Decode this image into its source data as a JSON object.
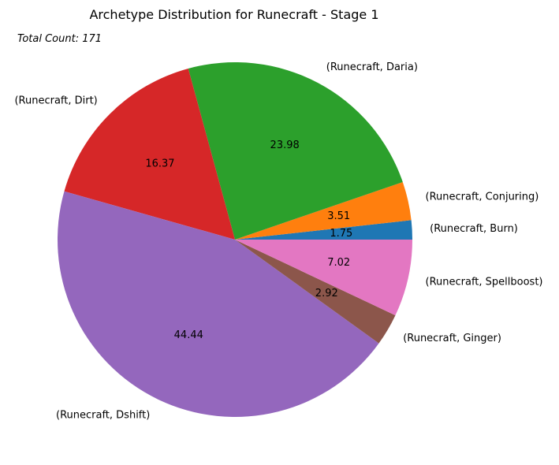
{
  "chart_data": {
    "type": "pie",
    "title": "Archetype Distribution for Runecraft - Stage 1",
    "annotation": "Total Count: 171",
    "slices": [
      {
        "label": "(Runecraft, Burn)",
        "value": 1.75,
        "pct_label": "1.75",
        "color": "#1f77b4"
      },
      {
        "label": "(Runecraft, Conjuring)",
        "value": 3.51,
        "pct_label": "3.51",
        "color": "#ff7f0e"
      },
      {
        "label": "(Runecraft, Daria)",
        "value": 23.98,
        "pct_label": "23.98",
        "color": "#2ca02c"
      },
      {
        "label": "(Runecraft, Dirt)",
        "value": 16.37,
        "pct_label": "16.37",
        "color": "#d62728"
      },
      {
        "label": "(Runecraft, Dshift)",
        "value": 44.44,
        "pct_label": "44.44",
        "color": "#9467bd"
      },
      {
        "label": "(Runecraft, Ginger)",
        "value": 2.92,
        "pct_label": "2.92",
        "color": "#8c564b"
      },
      {
        "label": "(Runecraft, Spellboost)",
        "value": 7.02,
        "pct_label": "7.02",
        "color": "#e377c2"
      }
    ]
  }
}
